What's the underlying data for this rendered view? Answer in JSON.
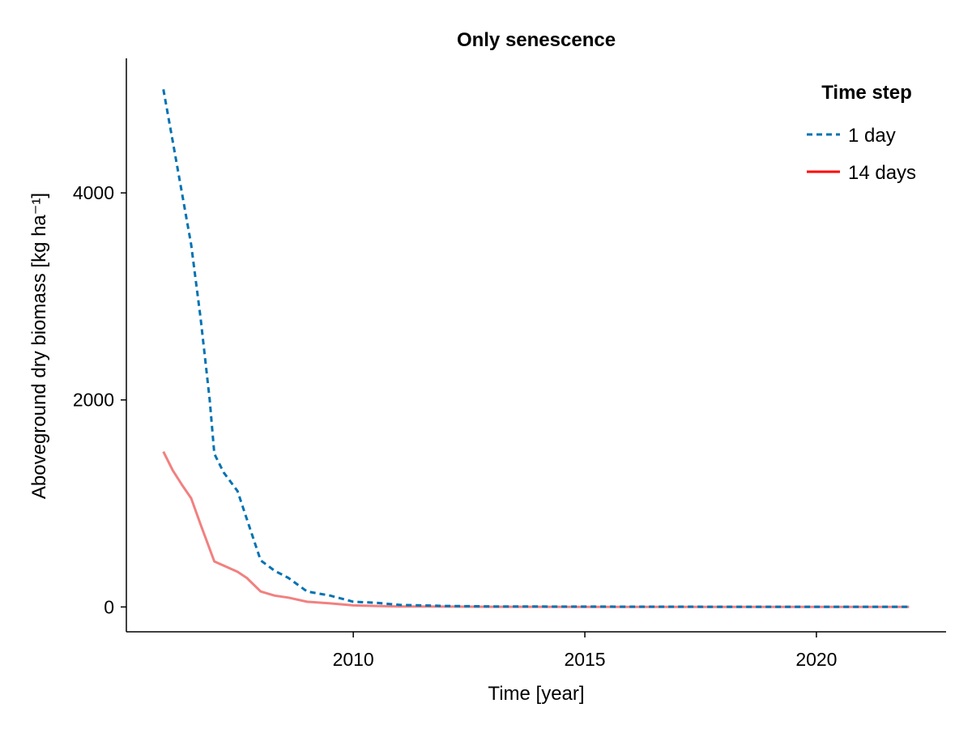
{
  "chart_data": {
    "type": "line",
    "title": "Only senescence",
    "xlabel": "Time [year]",
    "ylabel": "Aboveground dry biomass [kg ha⁻¹]",
    "xlim": [
      2005.1,
      2022.8
    ],
    "ylim": [
      -240,
      5300
    ],
    "xticks": [
      2010,
      2015,
      2020
    ],
    "yticks": [
      0,
      2000,
      4000
    ],
    "grid": false,
    "legend": {
      "title": "Time step",
      "position": "top-right"
    },
    "series": [
      {
        "name": "1 day",
        "color": "#0072b2",
        "style": "dashed",
        "x": [
          2005.9,
          2006.1,
          2006.3,
          2006.5,
          2006.7,
          2006.9,
          2007.0,
          2007.2,
          2007.5,
          2007.7,
          2008.0,
          2008.3,
          2008.6,
          2009.0,
          2009.5,
          2010.0,
          2010.5,
          2011.0,
          2012.0,
          2013.0,
          2015.0,
          2018.0,
          2022.0
        ],
        "y": [
          5000,
          4500,
          4000,
          3500,
          2800,
          2000,
          1480,
          1300,
          1120,
          850,
          450,
          350,
          280,
          150,
          110,
          50,
          40,
          20,
          10,
          5,
          3,
          2,
          2
        ]
      },
      {
        "name": "14 days",
        "color": "#ff0000",
        "line_color": "#f28080",
        "style": "solid",
        "x": [
          2005.9,
          2006.1,
          2006.3,
          2006.5,
          2006.7,
          2006.9,
          2007.0,
          2007.2,
          2007.5,
          2007.7,
          2008.0,
          2008.3,
          2008.6,
          2009.0,
          2009.5,
          2010.0,
          2010.5,
          2011.0,
          2012.0,
          2013.0,
          2015.0,
          2018.0,
          2022.0
        ],
        "y": [
          1500,
          1320,
          1180,
          1050,
          800,
          560,
          440,
          400,
          340,
          280,
          150,
          110,
          90,
          50,
          35,
          15,
          10,
          5,
          3,
          2,
          1,
          1,
          1
        ]
      }
    ]
  }
}
